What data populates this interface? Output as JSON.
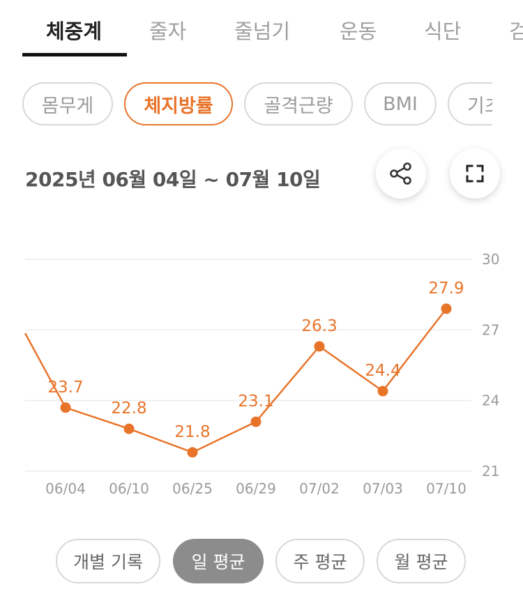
{
  "tabs": [
    "체중계",
    "줄자",
    "줄넘기",
    "운동",
    "식단",
    "검"
  ],
  "active_tab": 0,
  "chips": [
    "몸무게",
    "체지방률",
    "골격근량",
    "BMI",
    "기초대"
  ],
  "active_chip": 1,
  "date_range": "2025년 06월 04일 ~ 07월 10일",
  "buttons": {
    "share_icon": "share-icon",
    "fullscreen_icon": "fullscreen-icon"
  },
  "chart_data": {
    "type": "line",
    "x": [
      "06/04",
      "06/10",
      "06/25",
      "06/29",
      "07/02",
      "07/03",
      "07/10"
    ],
    "series": [
      {
        "values": [
          23.7,
          22.8,
          21.8,
          23.1,
          26.3,
          24.4,
          27.9
        ],
        "color": "#e8742a"
      }
    ],
    "data_labels": [
      "23.7",
      "22.8",
      "21.8",
      "23.1",
      "26.3",
      "24.4",
      "27.9"
    ],
    "ylim": [
      21,
      30
    ],
    "y_ticks": [
      "30",
      "27",
      "24",
      "21"
    ],
    "y_tick_values": [
      30,
      27,
      24,
      21
    ],
    "y_axis_position": "right",
    "grid": true,
    "line_enters_from_left": true
  },
  "period_buttons": [
    "개별 기록",
    "일 평균",
    "주 평균",
    "월 평균"
  ],
  "active_period": 1,
  "colors": {
    "accent": "#e8742a",
    "active_period_bg": "#8c8c8c",
    "chip_border": "#d8d8d8"
  }
}
